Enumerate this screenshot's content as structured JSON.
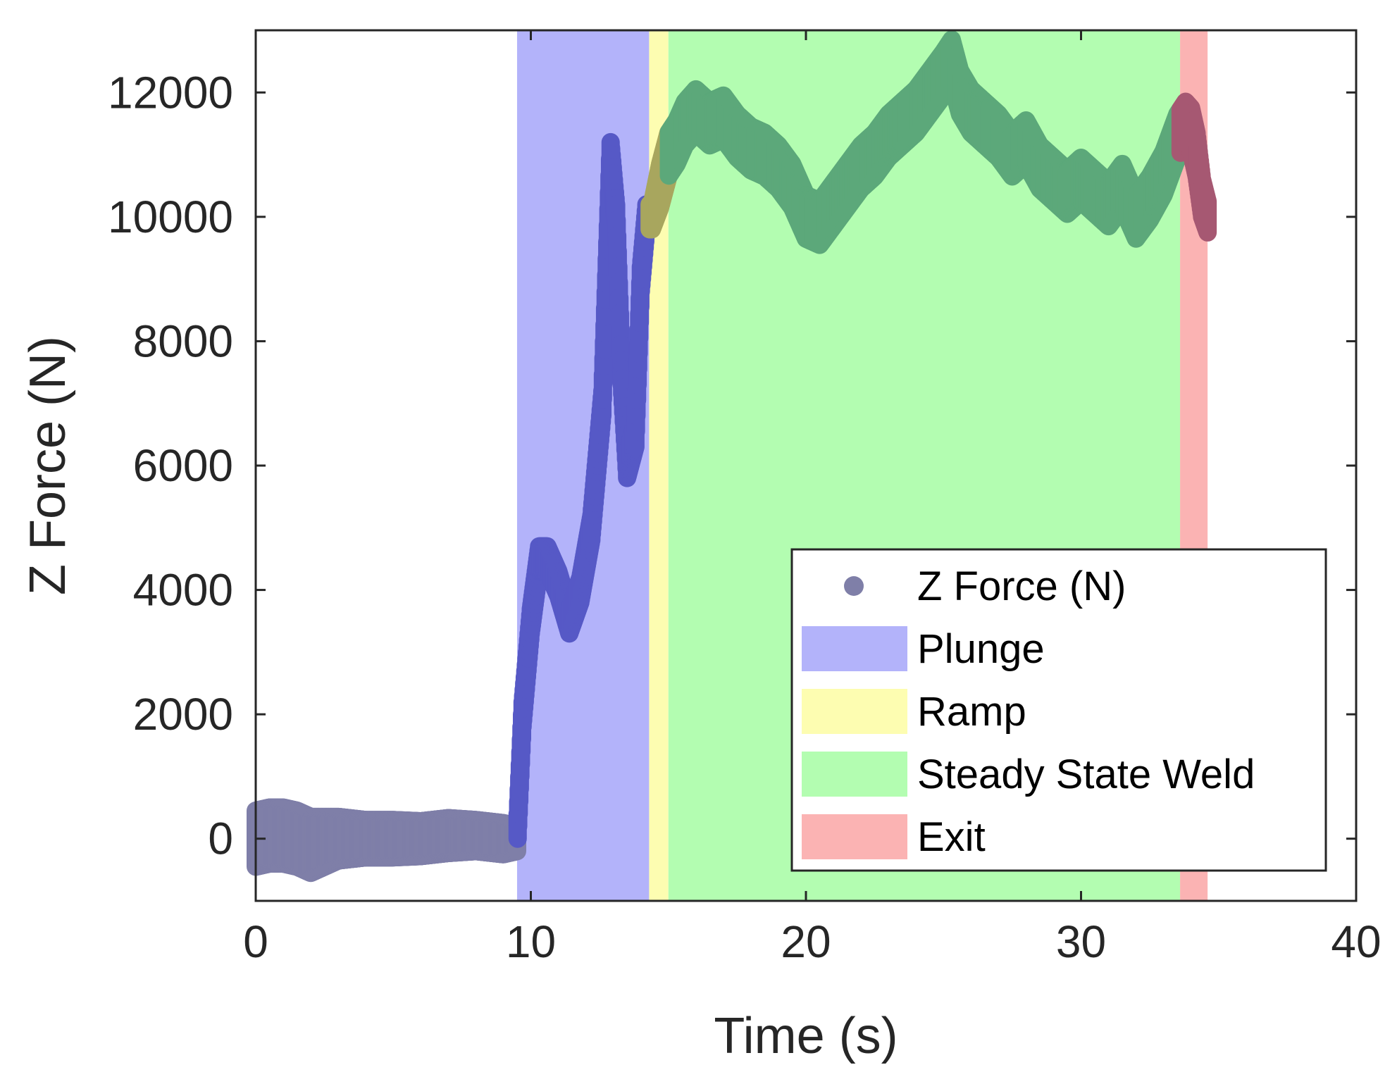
{
  "chart_data": {
    "type": "scatter",
    "title": "",
    "xlabel": "Time (s)",
    "ylabel": "Z Force (N)",
    "xlim": [
      0,
      40
    ],
    "ylim": [
      -1000,
      13000
    ],
    "xticks": [
      0,
      10,
      20,
      30,
      40
    ],
    "yticks": [
      0,
      2000,
      4000,
      6000,
      8000,
      10000,
      12000
    ],
    "xtick_labels": [
      "0",
      "10",
      "20",
      "30",
      "40"
    ],
    "ytick_labels": [
      "0",
      "2000",
      "4000",
      "6000",
      "8000",
      "10000",
      "12000"
    ],
    "grid": false,
    "legend_position": "bottom-right",
    "legend": [
      {
        "label": "Z Force (N)",
        "kind": "marker",
        "color": "#7f7fa8"
      },
      {
        "label": "Plunge",
        "kind": "patch",
        "color": "#b3b3fa"
      },
      {
        "label": "Ramp",
        "kind": "patch",
        "color": "#fdfdb1"
      },
      {
        "label": "Steady State Weld",
        "kind": "patch",
        "color": "#b3fdb1"
      },
      {
        "label": "Exit",
        "kind": "patch",
        "color": "#fbb3b3"
      }
    ],
    "regions": [
      {
        "name": "Plunge",
        "x_start": 9.5,
        "x_end": 14.3,
        "color": "#b3b3fa",
        "point_color": "#5659c6"
      },
      {
        "name": "Ramp",
        "x_start": 14.3,
        "x_end": 15.0,
        "color": "#fdfdb1",
        "point_color": "#a8a65e"
      },
      {
        "name": "Steady State Weld",
        "x_start": 15.0,
        "x_end": 33.6,
        "color": "#b3fdb1",
        "point_color": "#5ca87a"
      },
      {
        "name": "Exit",
        "x_start": 33.6,
        "x_end": 34.6,
        "color": "#fbb3b3",
        "point_color": "#a65872"
      }
    ],
    "series": [
      {
        "name": "Z Force (N)",
        "default_color": "#7f7fa8",
        "x": [
          0.0,
          0.5,
          1.0,
          1.5,
          2.0,
          3.0,
          4.0,
          5.0,
          6.0,
          7.0,
          8.0,
          9.0,
          9.5,
          9.7,
          10.0,
          10.3,
          10.6,
          11.0,
          11.4,
          11.8,
          12.2,
          12.6,
          12.9,
          13.1,
          13.3,
          13.5,
          13.8,
          14.0,
          14.2,
          14.4,
          14.7,
          15.0,
          15.3,
          15.6,
          16.0,
          16.5,
          17.0,
          17.5,
          18.0,
          18.5,
          19.0,
          19.5,
          20.0,
          20.5,
          21.0,
          21.5,
          22.0,
          22.5,
          23.0,
          23.5,
          24.0,
          24.5,
          25.0,
          25.3,
          25.6,
          26.0,
          26.5,
          27.0,
          27.5,
          28.0,
          28.5,
          29.0,
          29.5,
          30.0,
          30.5,
          31.0,
          31.5,
          32.0,
          32.5,
          33.0,
          33.5,
          33.8,
          34.0,
          34.2,
          34.4,
          34.6
        ],
        "y": [
          0,
          50,
          50,
          0,
          -100,
          0,
          0,
          0,
          0,
          50,
          50,
          0,
          0,
          2000,
          3500,
          4500,
          4500,
          4100,
          3500,
          4000,
          5000,
          7000,
          11000,
          10000,
          7500,
          6000,
          6500,
          9000,
          10000,
          10000,
          10500,
          11000,
          11200,
          11500,
          11700,
          11500,
          11600,
          11300,
          11100,
          11000,
          10800,
          10500,
          10000,
          9900,
          10200,
          10500,
          10800,
          11000,
          11300,
          11500,
          11700,
          12000,
          12300,
          12500,
          12000,
          11700,
          11500,
          11300,
          11000,
          11200,
          10800,
          10600,
          10400,
          10600,
          10400,
          10200,
          10500,
          10000,
          10300,
          10700,
          11300,
          11500,
          11400,
          11000,
          10300,
          10000
        ],
        "band_half_width_n": [
          450,
          450,
          450,
          450,
          450,
          350,
          300,
          300,
          280,
          280,
          250,
          250,
          200,
          200,
          200,
          200,
          200,
          200,
          200,
          200,
          200,
          200,
          200,
          200,
          200,
          200,
          200,
          200,
          200,
          200,
          350,
          350,
          350,
          350,
          350,
          350,
          350,
          350,
          350,
          350,
          350,
          350,
          350,
          350,
          350,
          350,
          350,
          350,
          350,
          350,
          350,
          350,
          350,
          350,
          350,
          350,
          350,
          350,
          350,
          350,
          350,
          350,
          350,
          350,
          350,
          350,
          350,
          350,
          350,
          350,
          350,
          350,
          350,
          350,
          300,
          250
        ]
      }
    ]
  }
}
